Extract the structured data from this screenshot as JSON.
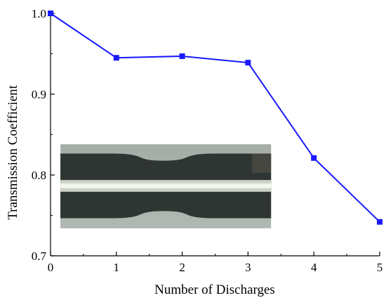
{
  "chart_data": {
    "type": "line",
    "title": "",
    "xlabel": "Number of Discharges",
    "ylabel": "Transmission Coefficient",
    "xlim": [
      0,
      5
    ],
    "ylim": [
      0.7,
      1.0
    ],
    "x_ticks": [
      0,
      1,
      2,
      3,
      4,
      5
    ],
    "y_ticks": [
      0.7,
      0.8,
      0.9,
      1.0
    ],
    "x_tick_labels": [
      "0",
      "1",
      "2",
      "3",
      "4",
      "5"
    ],
    "y_tick_labels": [
      "0.7",
      "0.8",
      "0.9",
      "1.0"
    ],
    "grid": false,
    "legend": "none",
    "series": [
      {
        "x": [
          0,
          1,
          2,
          3,
          4,
          5
        ],
        "values": [
          1.0,
          0.945,
          0.947,
          0.939,
          0.821,
          0.742
        ],
        "color": "#1a1aff",
        "marker": "square"
      }
    ],
    "inset": {
      "content": "fiber-taper-micrograph",
      "x_range": [
        0.15,
        3.35
      ],
      "y_range": [
        0.734,
        0.838
      ]
    }
  }
}
